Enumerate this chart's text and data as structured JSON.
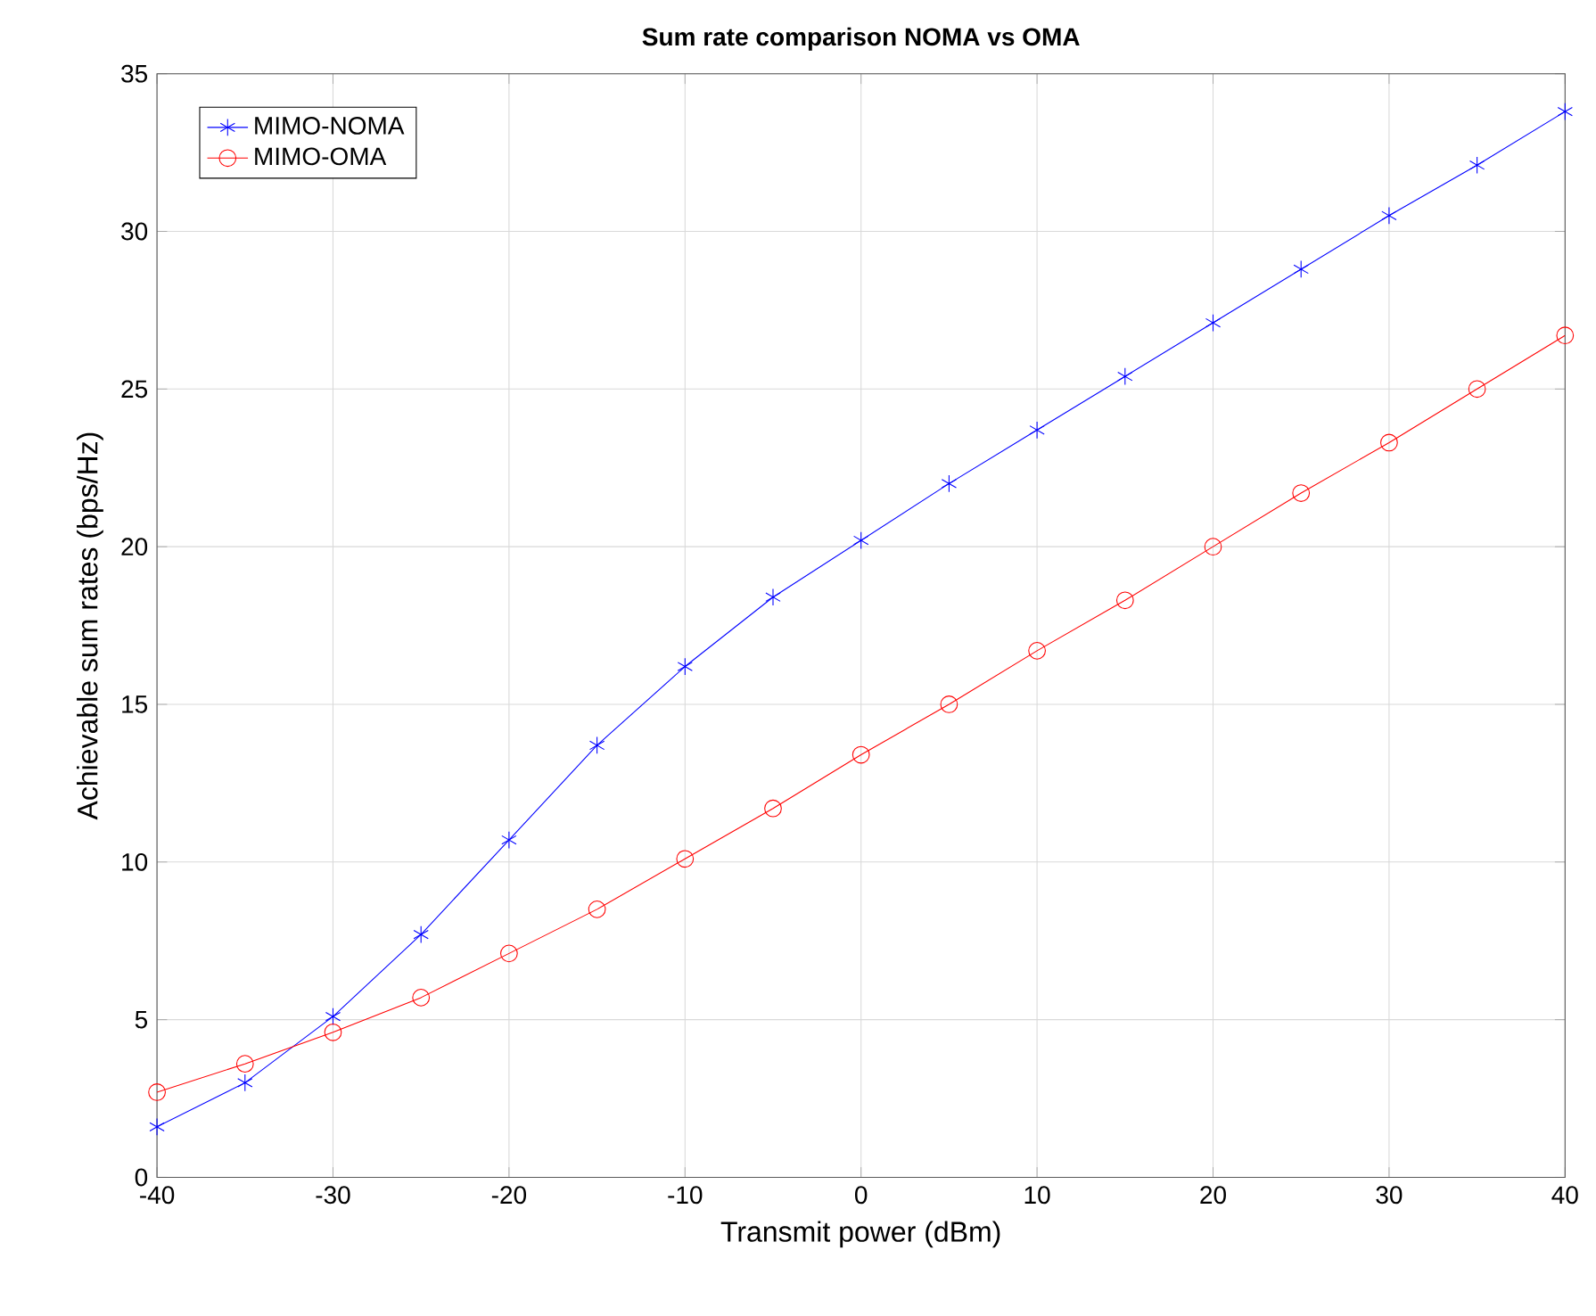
{
  "chart_data": {
    "type": "line",
    "title": "Sum rate comparison NOMA vs OMA",
    "xlabel": "Transmit power (dBm)",
    "ylabel": "Achievable sum rates (bps/Hz)",
    "x": [
      -40,
      -35,
      -30,
      -25,
      -20,
      -15,
      -10,
      -5,
      0,
      5,
      10,
      15,
      20,
      25,
      30,
      35,
      40
    ],
    "series": [
      {
        "name": "MIMO-NOMA",
        "color": "#0000ff",
        "marker": "cross",
        "values": [
          1.6,
          3.0,
          5.1,
          7.7,
          10.7,
          13.7,
          16.2,
          18.4,
          20.2,
          22.0,
          23.7,
          25.4,
          27.1,
          28.8,
          30.5,
          32.1,
          33.8
        ]
      },
      {
        "name": "MIMO-OMA",
        "color": "#ff0000",
        "marker": "circle",
        "values": [
          2.7,
          3.6,
          4.6,
          5.7,
          7.1,
          8.5,
          10.1,
          11.7,
          13.4,
          15.0,
          16.7,
          18.3,
          20.0,
          21.7,
          23.3,
          25.0,
          26.7
        ]
      }
    ],
    "xlim": [
      -40,
      40
    ],
    "xticks": [
      -40,
      -30,
      -20,
      -10,
      0,
      10,
      20,
      30,
      40
    ],
    "ylim": [
      0,
      35
    ],
    "yticks": [
      0,
      5,
      10,
      15,
      20,
      25,
      30,
      35
    ],
    "grid": true,
    "legend": "top left",
    "line_style": "solid"
  }
}
